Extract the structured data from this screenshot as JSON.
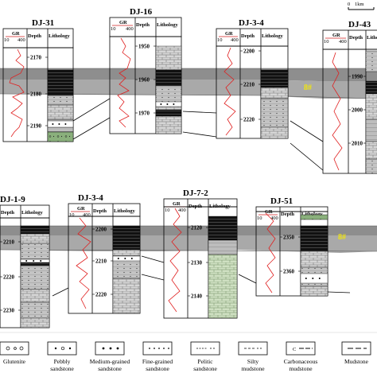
{
  "scale": {
    "zero": "0",
    "unit": "1km"
  },
  "coal_label": "8#",
  "headers": {
    "gr": "GR",
    "gr_min": "10",
    "gr_max": "400",
    "depth": "Depth",
    "lithology": "Lithology"
  },
  "wells": [
    {
      "name": "DJ-31",
      "depths": [
        "2170",
        "2180",
        "2190"
      ]
    },
    {
      "name": "DJ-16",
      "depths": [
        "1950",
        "1960",
        "1970"
      ]
    },
    {
      "name": "DJ-3-4",
      "depths": [
        "2200",
        "2210",
        "2220"
      ]
    },
    {
      "name": "DJ-43",
      "depths": [
        "1990",
        "2000",
        "2010"
      ]
    },
    {
      "name": "DJ-1-9",
      "depths": [
        "2210",
        "2220",
        "2230"
      ]
    },
    {
      "name": "DJ-3-4",
      "depths": [
        "2200",
        "2210",
        "2220"
      ]
    },
    {
      "name": "DJ-7-2",
      "depths": [
        "2120",
        "2130",
        "2140"
      ]
    },
    {
      "name": "DJ-51",
      "depths": [
        "2350",
        "2360"
      ]
    }
  ],
  "legend": [
    {
      "name": "Glutenite",
      "line1": "Glutenite",
      "line2": ""
    },
    {
      "name": "Pebbly sandstone",
      "line1": "Pebbly",
      "line2": "sandstone"
    },
    {
      "name": "Medium-grained sandstone",
      "line1": "Medium-grained",
      "line2": "sandstone"
    },
    {
      "name": "Fine-grained sandstone",
      "line1": "Fine-grained",
      "line2": "sandstone"
    },
    {
      "name": "Pelitic sandstone",
      "line1": "Pelitic",
      "line2": "sandstone"
    },
    {
      "name": "Silty mudstone",
      "line1": "Silty",
      "line2": "mudstone"
    },
    {
      "name": "Carbonaceous mudstone",
      "line1": "Carbonaceous",
      "line2": "mudstone"
    },
    {
      "name": "Mudstone",
      "line1": "Mudstone",
      "line2": ""
    }
  ]
}
